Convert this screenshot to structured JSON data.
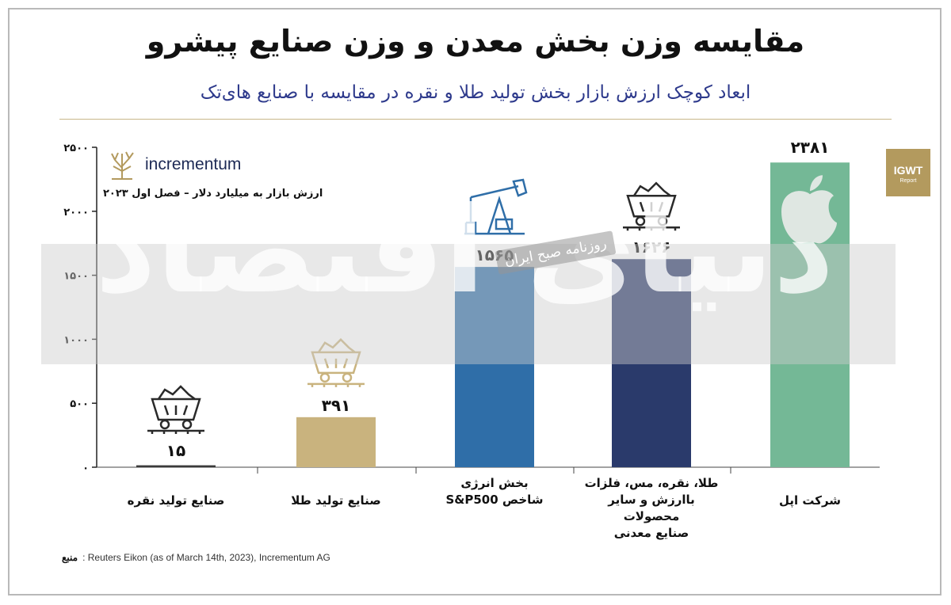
{
  "header": {
    "title": "مقایسه وزن بخش معدن و وزن صنایع پیشرو",
    "subtitle": "ابعاد کوچک ارزش بازار بخش تولید طلا و نقره در مقایسه با صنایع های‌تک"
  },
  "logo": {
    "text": "incrementum",
    "icon": "tree-icon"
  },
  "unit_note": "ارزش بازار به میلیارد دلار – فصل اول ۲۰۲۳",
  "badge": {
    "line1": "IGWT",
    "line2": "Report"
  },
  "source": {
    "label": "منبع",
    "text": ": Reuters Eikon (as of March 14th, 2023), Incrementum AG"
  },
  "watermark": {
    "main": "دنیای اقتصاد",
    "badge": "روزنامه صبح ایران"
  },
  "colors": {
    "silver": "#3a3a3a",
    "gold": "#c9b37e",
    "energy": "#2f6ea8",
    "metals": "#2a3a6b",
    "apple": "#74b896",
    "apple_logo": "#dfe7e2"
  },
  "chart_data": {
    "type": "bar",
    "unit": "billion USD",
    "categories": [
      {
        "lines": [
          "صنایع تولید نقره"
        ]
      },
      {
        "lines": [
          "صنایع تولید طلا"
        ]
      },
      {
        "lines": [
          "بخش انرژی",
          "شاخص S&P500"
        ]
      },
      {
        "lines": [
          "طلا، نقره، مس، فلزات",
          "باارزش و سایر محصولات",
          "صنایع معدنی"
        ]
      },
      {
        "lines": [
          "شرکت اپل"
        ]
      }
    ],
    "values": [
      15,
      391,
      1565,
      1626,
      2381
    ],
    "value_labels": [
      "۱۵",
      "۳۹۱",
      "۱۵۶۵",
      "۱۶۲۶",
      "۲۳۸۱"
    ],
    "icons": [
      "mine-cart-icon",
      "mine-cart-icon",
      "oil-pump-icon",
      "mine-cart-icon",
      "apple-logo-icon"
    ],
    "ylim": [
      0,
      2500
    ],
    "yticks": [
      0,
      500,
      1000,
      1500,
      2000,
      2500
    ],
    "ytick_labels": [
      "۰",
      "۵۰۰",
      "۱۰۰۰",
      "۱۵۰۰",
      "۲۰۰۰",
      "۲۵۰۰"
    ],
    "grid": false,
    "legend": "none"
  }
}
